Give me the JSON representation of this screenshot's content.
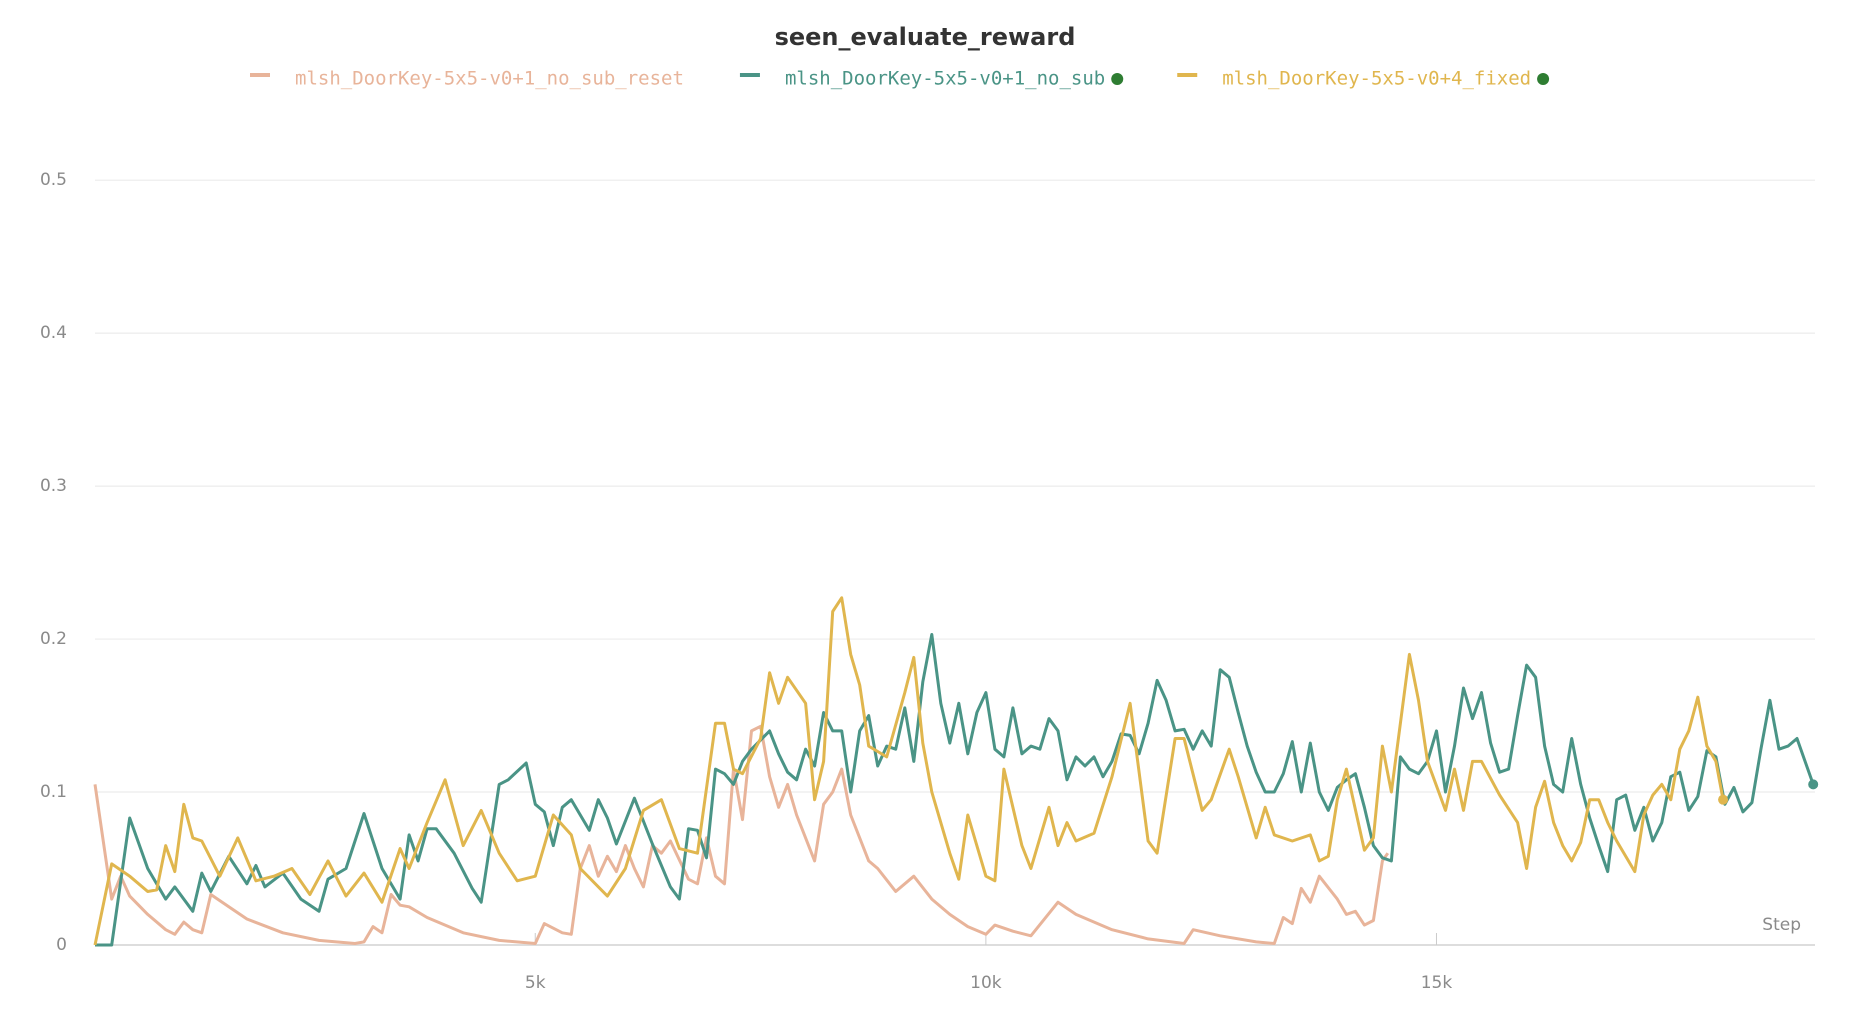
{
  "chart_data": {
    "type": "line",
    "title": "seen_evaluate_reward",
    "xlabel": "Step",
    "xlim": [
      115,
      19200
    ],
    "ylim": [
      0,
      0.54
    ],
    "xticks": [
      {
        "value": 5000,
        "label": "5k"
      },
      {
        "value": 10000,
        "label": "10k"
      },
      {
        "value": 15000,
        "label": "15k"
      }
    ],
    "yticks": [
      0,
      0.1,
      0.2,
      0.3,
      0.4,
      0.5
    ],
    "grid": true,
    "series": [
      {
        "name": "mlsh_DoorKey-5x5-v0+1_no_sub_reset",
        "color": "#e8b49a",
        "x": [
          115,
          300,
          400,
          500,
          700,
          900,
          1000,
          1100,
          1200,
          1300,
          1400,
          1600,
          1800,
          2200,
          2600,
          3000,
          3100,
          3200,
          3300,
          3400,
          3500,
          3600,
          3800,
          4200,
          4600,
          5000,
          5100,
          5300,
          5400,
          5500,
          5600,
          5700,
          5800,
          5900,
          6000,
          6100,
          6200,
          6300,
          6400,
          6500,
          6700,
          6800,
          6900,
          7000,
          7100,
          7200,
          7300,
          7400,
          7500,
          7600,
          7700,
          7800,
          7900,
          8000,
          8100,
          8200,
          8300,
          8400,
          8500,
          8700,
          8800,
          9000,
          9200,
          9400,
          9600,
          9800,
          10000,
          10100,
          10300,
          10500,
          10800,
          11000,
          11400,
          11800,
          12200,
          12300,
          12600,
          13000,
          13200,
          13300,
          13400,
          13500,
          13600,
          13700,
          13900,
          14000,
          14100,
          14200,
          14300,
          14400,
          14460
        ],
        "values": [
          0.105,
          0.03,
          0.045,
          0.032,
          0.02,
          0.01,
          0.007,
          0.015,
          0.01,
          0.008,
          0.033,
          0.025,
          0.017,
          0.008,
          0.003,
          0.001,
          0.002,
          0.012,
          0.008,
          0.033,
          0.026,
          0.025,
          0.018,
          0.008,
          0.003,
          0.001,
          0.014,
          0.008,
          0.007,
          0.05,
          0.065,
          0.045,
          0.058,
          0.048,
          0.065,
          0.05,
          0.038,
          0.065,
          0.06,
          0.068,
          0.043,
          0.04,
          0.07,
          0.045,
          0.04,
          0.115,
          0.082,
          0.14,
          0.143,
          0.11,
          0.09,
          0.105,
          0.085,
          0.07,
          0.055,
          0.092,
          0.1,
          0.115,
          0.085,
          0.055,
          0.05,
          0.035,
          0.045,
          0.03,
          0.02,
          0.012,
          0.007,
          0.013,
          0.009,
          0.006,
          0.028,
          0.02,
          0.01,
          0.004,
          0.001,
          0.01,
          0.006,
          0.002,
          0.001,
          0.018,
          0.014,
          0.037,
          0.028,
          0.045,
          0.03,
          0.02,
          0.022,
          0.013,
          0.016,
          0.055,
          0.06
        ]
      },
      {
        "name": "mlsh_DoorKey-5x5-v0+1_no_sub",
        "color": "#4a9486",
        "x": [
          115,
          300,
          500,
          700,
          900,
          1000,
          1200,
          1300,
          1400,
          1600,
          1800,
          1900,
          2000,
          2200,
          2400,
          2600,
          2700,
          2900,
          3100,
          3300,
          3500,
          3600,
          3700,
          3800,
          3900,
          4100,
          4300,
          4400,
          4600,
          4700,
          4900,
          5000,
          5100,
          5200,
          5300,
          5400,
          5600,
          5700,
          5800,
          5900,
          6100,
          6300,
          6500,
          6600,
          6700,
          6800,
          6900,
          7000,
          7100,
          7200,
          7300,
          7400,
          7600,
          7700,
          7800,
          7900,
          8000,
          8100,
          8200,
          8300,
          8400,
          8500,
          8600,
          8700,
          8800,
          8900,
          9000,
          9100,
          9200,
          9300,
          9400,
          9500,
          9600,
          9700,
          9800,
          9900,
          10000,
          10100,
          10200,
          10300,
          10400,
          10500,
          10600,
          10700,
          10800,
          10900,
          11000,
          11100,
          11200,
          11300,
          11400,
          11500,
          11600,
          11700,
          11800,
          11900,
          12000,
          12100,
          12200,
          12300,
          12400,
          12500,
          12600,
          12700,
          12800,
          12900,
          13000,
          13100,
          13200,
          13300,
          13400,
          13500,
          13600,
          13700,
          13800,
          13900,
          14000,
          14100,
          14200,
          14300,
          14400,
          14500,
          14600,
          14700,
          14800,
          14900,
          15000,
          15100,
          15200,
          15300,
          15400,
          15500,
          15600,
          15700,
          15800,
          15900,
          16000,
          16100,
          16200,
          16300,
          16400,
          16500,
          16600,
          16700,
          16800,
          16900,
          17000,
          17100,
          17200,
          17300,
          17400,
          17500,
          17600,
          17700,
          17800,
          17900,
          18000,
          18100,
          18200,
          18300,
          18400,
          18500,
          18600,
          18700,
          18800,
          18900,
          19000,
          19180
        ],
        "values": [
          0,
          0,
          0.083,
          0.05,
          0.03,
          0.038,
          0.022,
          0.047,
          0.035,
          0.058,
          0.04,
          0.052,
          0.038,
          0.047,
          0.03,
          0.022,
          0.043,
          0.05,
          0.086,
          0.05,
          0.03,
          0.072,
          0.055,
          0.076,
          0.076,
          0.06,
          0.037,
          0.028,
          0.105,
          0.108,
          0.119,
          0.092,
          0.087,
          0.065,
          0.09,
          0.095,
          0.075,
          0.095,
          0.083,
          0.066,
          0.096,
          0.066,
          0.038,
          0.03,
          0.076,
          0.075,
          0.057,
          0.115,
          0.112,
          0.105,
          0.12,
          0.128,
          0.14,
          0.125,
          0.113,
          0.108,
          0.128,
          0.117,
          0.152,
          0.14,
          0.14,
          0.1,
          0.14,
          0.15,
          0.117,
          0.13,
          0.128,
          0.155,
          0.12,
          0.172,
          0.203,
          0.158,
          0.132,
          0.158,
          0.125,
          0.152,
          0.165,
          0.128,
          0.123,
          0.155,
          0.125,
          0.13,
          0.128,
          0.148,
          0.14,
          0.108,
          0.123,
          0.117,
          0.123,
          0.11,
          0.12,
          0.138,
          0.137,
          0.125,
          0.145,
          0.173,
          0.16,
          0.14,
          0.141,
          0.128,
          0.14,
          0.13,
          0.18,
          0.175,
          0.152,
          0.13,
          0.113,
          0.1,
          0.1,
          0.112,
          0.133,
          0.1,
          0.132,
          0.1,
          0.088,
          0.103,
          0.108,
          0.112,
          0.09,
          0.065,
          0.057,
          0.055,
          0.123,
          0.115,
          0.112,
          0.12,
          0.14,
          0.1,
          0.13,
          0.168,
          0.148,
          0.165,
          0.132,
          0.113,
          0.115,
          0.15,
          0.183,
          0.175,
          0.13,
          0.105,
          0.1,
          0.135,
          0.105,
          0.083,
          0.065,
          0.048,
          0.095,
          0.098,
          0.075,
          0.09,
          0.068,
          0.08,
          0.11,
          0.113,
          0.088,
          0.097,
          0.127,
          0.123,
          0.092,
          0.103,
          0.087,
          0.093,
          0.128,
          0.16,
          0.128,
          0.13,
          0.135,
          0.105
        ]
      },
      {
        "name": "mlsh_DoorKey-5x5-v0+4_fixed",
        "color": "#e0b64e",
        "x": [
          115,
          300,
          500,
          700,
          800,
          900,
          1000,
          1100,
          1200,
          1300,
          1500,
          1700,
          1900,
          2100,
          2300,
          2500,
          2700,
          2900,
          3100,
          3300,
          3500,
          3600,
          3800,
          4000,
          4200,
          4400,
          4600,
          4800,
          5000,
          5200,
          5400,
          5500,
          5800,
          6000,
          6200,
          6400,
          6600,
          6800,
          7000,
          7100,
          7200,
          7300,
          7500,
          7600,
          7700,
          7800,
          8000,
          8100,
          8200,
          8300,
          8400,
          8500,
          8600,
          8700,
          8900,
          9100,
          9200,
          9300,
          9400,
          9600,
          9700,
          9800,
          10000,
          10100,
          10200,
          10400,
          10500,
          10700,
          10800,
          10900,
          11000,
          11200,
          11400,
          11600,
          11800,
          11900,
          12100,
          12200,
          12400,
          12500,
          12700,
          12800,
          13000,
          13100,
          13200,
          13400,
          13600,
          13700,
          13800,
          13900,
          14000,
          14200,
          14300,
          14400,
          14500,
          14700,
          14800,
          14900,
          15100,
          15200,
          15300,
          15400,
          15500,
          15700,
          15900,
          16000,
          16100,
          16200,
          16300,
          16400,
          16500,
          16600,
          16700,
          16800,
          16900,
          17000,
          17100,
          17200,
          17300,
          17400,
          17500,
          17600,
          17700,
          17800,
          17900,
          18000,
          18100,
          18180
        ],
        "values": [
          0,
          0.053,
          0.045,
          0.035,
          0.036,
          0.065,
          0.048,
          0.092,
          0.07,
          0.068,
          0.045,
          0.07,
          0.042,
          0.045,
          0.05,
          0.033,
          0.055,
          0.032,
          0.047,
          0.028,
          0.063,
          0.05,
          0.08,
          0.108,
          0.065,
          0.088,
          0.06,
          0.042,
          0.045,
          0.085,
          0.072,
          0.05,
          0.032,
          0.05,
          0.088,
          0.095,
          0.063,
          0.06,
          0.145,
          0.145,
          0.115,
          0.112,
          0.135,
          0.178,
          0.158,
          0.175,
          0.158,
          0.095,
          0.12,
          0.218,
          0.227,
          0.19,
          0.17,
          0.13,
          0.123,
          0.165,
          0.188,
          0.132,
          0.1,
          0.06,
          0.043,
          0.085,
          0.045,
          0.042,
          0.115,
          0.065,
          0.05,
          0.09,
          0.065,
          0.08,
          0.068,
          0.073,
          0.11,
          0.158,
          0.068,
          0.06,
          0.135,
          0.135,
          0.088,
          0.095,
          0.128,
          0.11,
          0.07,
          0.09,
          0.072,
          0.068,
          0.072,
          0.055,
          0.058,
          0.095,
          0.115,
          0.062,
          0.07,
          0.13,
          0.1,
          0.19,
          0.16,
          0.12,
          0.088,
          0.115,
          0.088,
          0.12,
          0.12,
          0.098,
          0.08,
          0.05,
          0.09,
          0.107,
          0.08,
          0.065,
          0.055,
          0.067,
          0.095,
          0.095,
          0.08,
          0.068,
          0.058,
          0.048,
          0.085,
          0.098,
          0.105,
          0.095,
          0.128,
          0.14,
          0.162,
          0.13,
          0.12,
          0.095
        ]
      }
    ]
  }
}
